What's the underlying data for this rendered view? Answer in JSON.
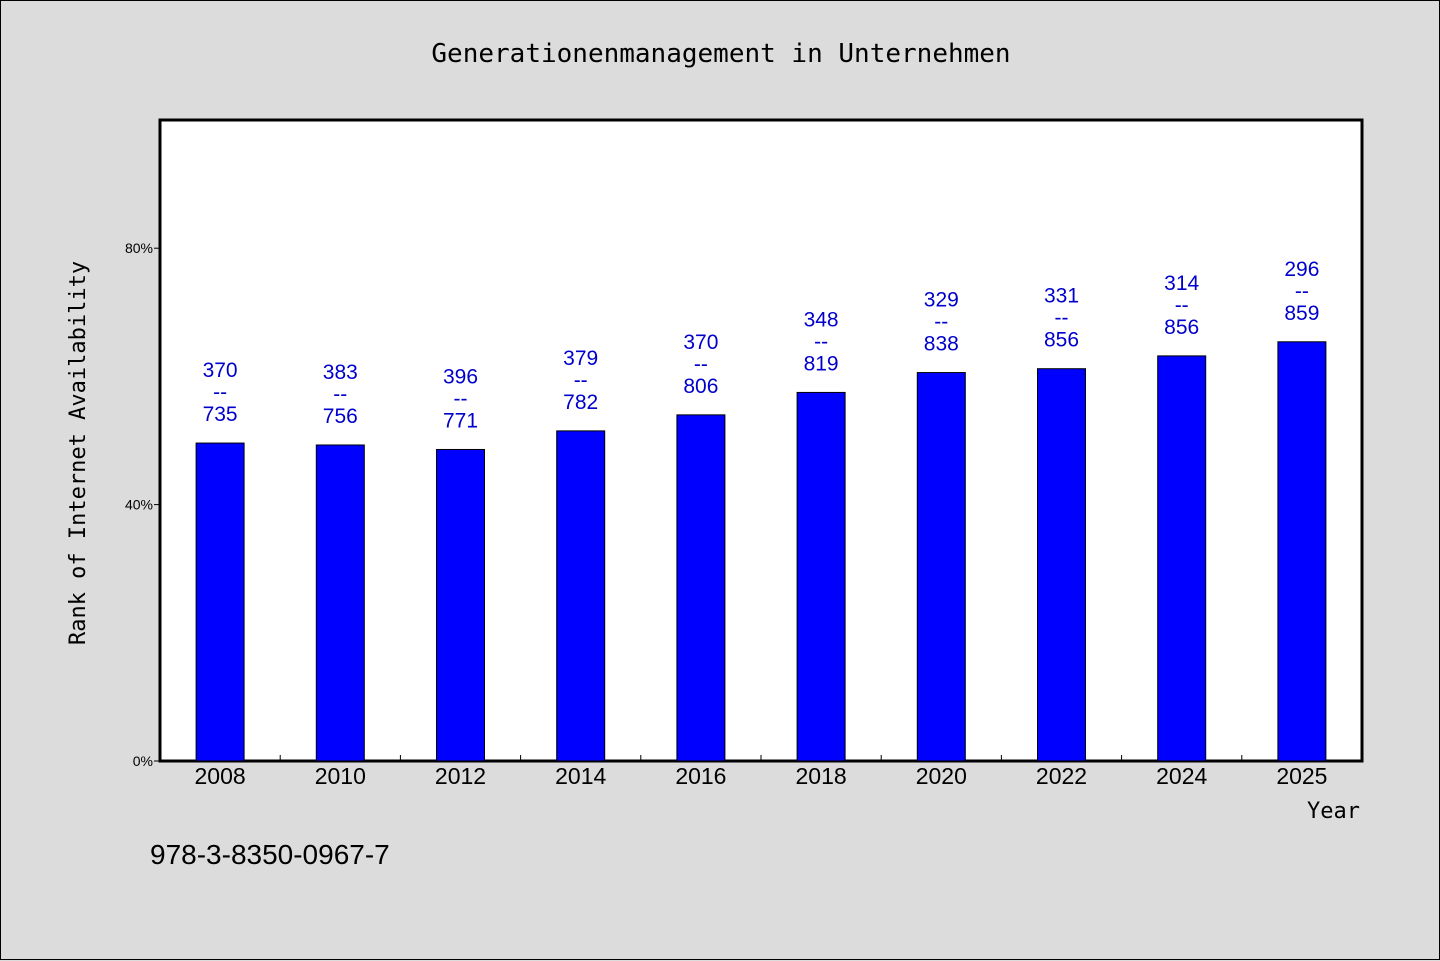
{
  "chart_data": {
    "type": "bar",
    "title": "Generationenmanagement in Unternehmen",
    "xlabel": "Year",
    "ylabel": "Rank of Internet Availability",
    "footer": "978-3-8350-0967-7",
    "ylim": [
      0,
      100
    ],
    "yticks": [
      {
        "value": 0,
        "label": "0%"
      },
      {
        "value": 40,
        "label": "40%"
      },
      {
        "value": 80,
        "label": "80%"
      }
    ],
    "categories": [
      "2008",
      "2010",
      "2012",
      "2014",
      "2016",
      "2018",
      "2020",
      "2022",
      "2024",
      "2025"
    ],
    "values": [
      49.6,
      49.3,
      48.6,
      51.5,
      54.0,
      57.5,
      60.6,
      61.2,
      63.2,
      65.4
    ],
    "labels_top": [
      "370",
      "383",
      "396",
      "379",
      "370",
      "348",
      "329",
      "331",
      "314",
      "296"
    ],
    "labels_sep": [
      "--",
      "--",
      "--",
      "--",
      "--",
      "--",
      "--",
      "--",
      "--",
      "--"
    ],
    "labels_bottom": [
      "735",
      "756",
      "771",
      "782",
      "806",
      "819",
      "838",
      "856",
      "856",
      "859"
    ],
    "grid": false,
    "legend": "none",
    "colors": {
      "bar": "#0000ff",
      "label": "#0000cc",
      "plot_bg": "#ffffff",
      "page_bg": "#dcdcdc"
    }
  }
}
